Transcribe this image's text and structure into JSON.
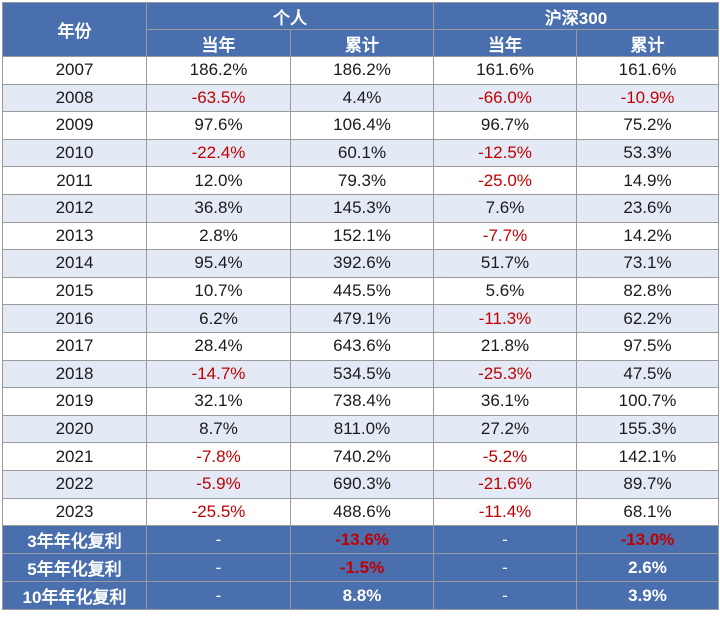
{
  "header": {
    "year_label": "年份",
    "group_personal": "个人",
    "group_index": "沪深300",
    "sub_annual_1": "当年",
    "sub_cumulative_1": "累计",
    "sub_annual_2": "当年",
    "sub_cumulative_2": "累计"
  },
  "rows": [
    {
      "year": "2007",
      "personal_annual": "186.2%",
      "personal_cumulative": "186.2%",
      "index_annual": "161.6%",
      "index_cumulative": "161.6%"
    },
    {
      "year": "2008",
      "personal_annual": "-63.5%",
      "personal_cumulative": "4.4%",
      "index_annual": "-66.0%",
      "index_cumulative": "-10.9%"
    },
    {
      "year": "2009",
      "personal_annual": "97.6%",
      "personal_cumulative": "106.4%",
      "index_annual": "96.7%",
      "index_cumulative": "75.2%"
    },
    {
      "year": "2010",
      "personal_annual": "-22.4%",
      "personal_cumulative": "60.1%",
      "index_annual": "-12.5%",
      "index_cumulative": "53.3%"
    },
    {
      "year": "2011",
      "personal_annual": "12.0%",
      "personal_cumulative": "79.3%",
      "index_annual": "-25.0%",
      "index_cumulative": "14.9%"
    },
    {
      "year": "2012",
      "personal_annual": "36.8%",
      "personal_cumulative": "145.3%",
      "index_annual": "7.6%",
      "index_cumulative": "23.6%"
    },
    {
      "year": "2013",
      "personal_annual": "2.8%",
      "personal_cumulative": "152.1%",
      "index_annual": "-7.7%",
      "index_cumulative": "14.2%"
    },
    {
      "year": "2014",
      "personal_annual": "95.4%",
      "personal_cumulative": "392.6%",
      "index_annual": "51.7%",
      "index_cumulative": "73.1%"
    },
    {
      "year": "2015",
      "personal_annual": "10.7%",
      "personal_cumulative": "445.5%",
      "index_annual": "5.6%",
      "index_cumulative": "82.8%"
    },
    {
      "year": "2016",
      "personal_annual": "6.2%",
      "personal_cumulative": "479.1%",
      "index_annual": "-11.3%",
      "index_cumulative": "62.2%"
    },
    {
      "year": "2017",
      "personal_annual": "28.4%",
      "personal_cumulative": "643.6%",
      "index_annual": "21.8%",
      "index_cumulative": "97.5%"
    },
    {
      "year": "2018",
      "personal_annual": "-14.7%",
      "personal_cumulative": "534.5%",
      "index_annual": "-25.3%",
      "index_cumulative": "47.5%"
    },
    {
      "year": "2019",
      "personal_annual": "32.1%",
      "personal_cumulative": "738.4%",
      "index_annual": "36.1%",
      "index_cumulative": "100.7%"
    },
    {
      "year": "2020",
      "personal_annual": "8.7%",
      "personal_cumulative": "811.0%",
      "index_annual": "27.2%",
      "index_cumulative": "155.3%"
    },
    {
      "year": "2021",
      "personal_annual": "-7.8%",
      "personal_cumulative": "740.2%",
      "index_annual": "-5.2%",
      "index_cumulative": "142.1%"
    },
    {
      "year": "2022",
      "personal_annual": "-5.9%",
      "personal_cumulative": "690.3%",
      "index_annual": "-21.6%",
      "index_cumulative": "89.7%"
    },
    {
      "year": "2023",
      "personal_annual": "-25.5%",
      "personal_cumulative": "488.6%",
      "index_annual": "-11.4%",
      "index_cumulative": "68.1%"
    }
  ],
  "summary": [
    {
      "label": "3年年化复利",
      "personal_annual": "-",
      "personal_cumulative": "-13.6%",
      "index_annual": "-",
      "index_cumulative": "-13.0%"
    },
    {
      "label": "5年年化复利",
      "personal_annual": "-",
      "personal_cumulative": "-1.5%",
      "index_annual": "-",
      "index_cumulative": "2.6%"
    },
    {
      "label": "10年年化复利",
      "personal_annual": "-",
      "personal_cumulative": "8.8%",
      "index_annual": "-",
      "index_cumulative": "3.9%"
    }
  ],
  "colors": {
    "header_bg": "#4a6fae",
    "header_text": "#ffffff",
    "stripe_bg": "#e3eaf6",
    "negative_text": "#c00000"
  }
}
